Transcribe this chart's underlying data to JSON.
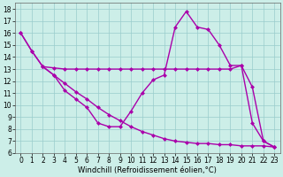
{
  "bg_color": "#cceee8",
  "line_color": "#aa00aa",
  "marker": "D",
  "markersize": 2.5,
  "linewidth": 1.0,
  "xlim": [
    -0.5,
    23.5
  ],
  "ylim": [
    6,
    18.5
  ],
  "xlabel": "Windchill (Refroidissement éolien,°C)",
  "xlabel_fontsize": 6,
  "tick_fontsize": 5.5,
  "xticks": [
    0,
    1,
    2,
    3,
    4,
    5,
    6,
    7,
    8,
    9,
    10,
    11,
    12,
    13,
    14,
    15,
    16,
    17,
    18,
    19,
    20,
    21,
    22,
    23
  ],
  "yticks": [
    6,
    7,
    8,
    9,
    10,
    11,
    12,
    13,
    14,
    15,
    16,
    17,
    18
  ],
  "line1_x": [
    0,
    1,
    2,
    3,
    4,
    5,
    6,
    7,
    8,
    9,
    10,
    11,
    12,
    13,
    14,
    15,
    16,
    17,
    18,
    19,
    20,
    21,
    22,
    23
  ],
  "line1_y": [
    16.0,
    14.5,
    13.2,
    13.1,
    13.0,
    13.0,
    13.0,
    13.0,
    13.0,
    13.0,
    13.0,
    13.0,
    13.0,
    13.0,
    13.0,
    13.0,
    13.0,
    13.0,
    13.0,
    13.0,
    13.3,
    11.5,
    7.0,
    6.5
  ],
  "line2_x": [
    0,
    1,
    2,
    3,
    4,
    5,
    6,
    7,
    8,
    9,
    10,
    11,
    12,
    13,
    14,
    15,
    16,
    17,
    18,
    19,
    20,
    21,
    22,
    23
  ],
  "line2_y": [
    16.0,
    14.5,
    13.2,
    12.5,
    11.8,
    11.1,
    10.5,
    9.8,
    9.2,
    8.7,
    8.2,
    7.8,
    7.5,
    7.2,
    7.0,
    6.9,
    6.8,
    6.8,
    6.7,
    6.7,
    6.6,
    6.6,
    6.6,
    6.5
  ],
  "line3_x": [
    2,
    3,
    4,
    5,
    6,
    7,
    8,
    9,
    10,
    11,
    12,
    13,
    14,
    15,
    16,
    17,
    18,
    19,
    20,
    21,
    22,
    23
  ],
  "line3_y": [
    13.2,
    12.5,
    11.2,
    10.5,
    9.8,
    8.5,
    8.2,
    8.2,
    9.5,
    11.0,
    12.1,
    12.5,
    16.5,
    17.8,
    16.5,
    16.3,
    15.0,
    13.3,
    13.3,
    8.5,
    7.0,
    6.5
  ],
  "grid_color": "#99cccc",
  "grid_lw": 0.5
}
